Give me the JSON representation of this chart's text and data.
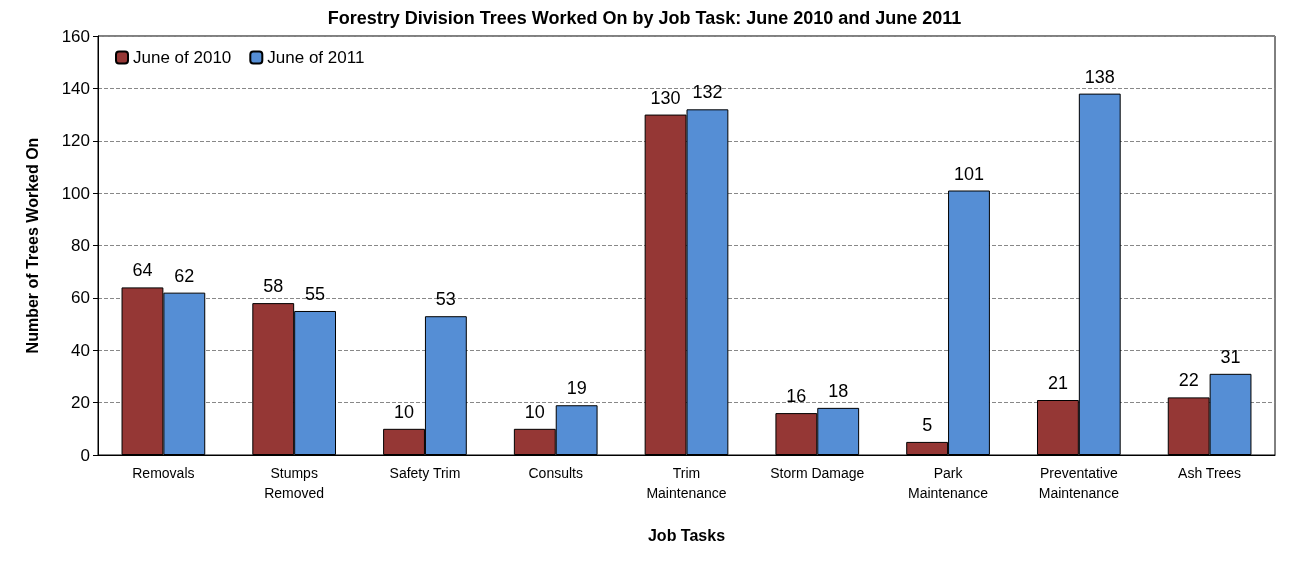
{
  "chart_data": {
    "type": "bar",
    "title": "Forestry Division Trees Worked On by Job Task: June 2010 and June 2011",
    "xlabel": "Job Tasks",
    "ylabel": "Number of Trees Worked On",
    "categories": [
      "Removals",
      "Stumps\nRemoved",
      "Safety Trim",
      "Consults",
      "Trim\nMaintenance",
      "Storm Damage",
      "Park\nMaintenance",
      "Preventative\nMaintenance",
      "Ash Trees"
    ],
    "series": [
      {
        "name": "June of 2010",
        "color": "#953735",
        "values": [
          64,
          58,
          10,
          10,
          130,
          16,
          5,
          21,
          22
        ]
      },
      {
        "name": "June of 2011",
        "color": "#558ed5",
        "values": [
          62,
          55,
          53,
          19,
          132,
          18,
          101,
          138,
          31
        ]
      }
    ],
    "ylim": [
      0,
      160
    ],
    "yticks": [
      0,
      20,
      40,
      60,
      80,
      100,
      120,
      140,
      160
    ],
    "grid": "y",
    "legend": "top left",
    "data_labels": true
  }
}
